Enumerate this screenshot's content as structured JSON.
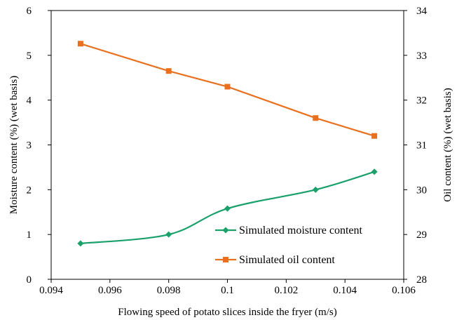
{
  "chart_data": {
    "type": "line",
    "title": "",
    "xlabel": "Flowing speed of potato slices inside the fryer (m/s)",
    "ylabel_left": "Moisture content (%) (wet basis)",
    "ylabel_right": "Oil content (%) (wet basis)",
    "xlim": [
      0.094,
      0.106
    ],
    "ylim_left": [
      0,
      6
    ],
    "ylim_right": [
      28,
      34
    ],
    "x_ticks": [
      "0.094",
      "0.096",
      "0.098",
      "0.1",
      "0.102",
      "0.104",
      "0.106"
    ],
    "y_left_ticks": [
      "0",
      "1",
      "2",
      "3",
      "4",
      "5",
      "6"
    ],
    "y_right_ticks": [
      "28",
      "29",
      "30",
      "31",
      "32",
      "33",
      "34"
    ],
    "grid": false,
    "legend_position": "bottom-right",
    "series": [
      {
        "name": "Simulated moisture content",
        "axis": "left",
        "color": "#1aa06b",
        "marker": "diamond",
        "smooth": true,
        "x": [
          0.095,
          0.098,
          0.1,
          0.103,
          0.105
        ],
        "y": [
          0.8,
          1.0,
          1.58,
          2.0,
          2.4
        ]
      },
      {
        "name": "Simulated oil content",
        "axis": "right",
        "color": "#e8701e",
        "marker": "square",
        "smooth": false,
        "x": [
          0.095,
          0.098,
          0.1,
          0.103,
          0.105
        ],
        "y": [
          33.26,
          32.65,
          32.3,
          31.6,
          31.2
        ]
      }
    ]
  }
}
